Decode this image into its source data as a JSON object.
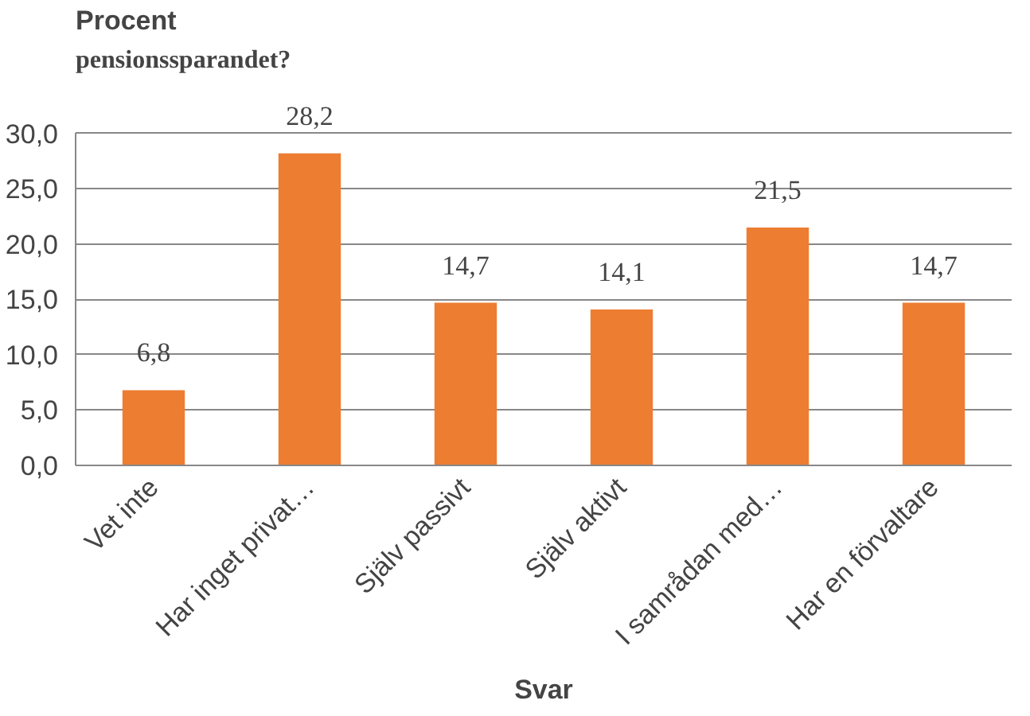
{
  "chart_data": {
    "type": "bar",
    "title": "pensionssparandet?",
    "ylabel": "Procent",
    "xlabel": "Svar",
    "categories": [
      "Vet inte",
      "Har inget privat…",
      "Själv passivt",
      "Själv aktivt",
      "I samrådan med…",
      "Har en förvaltare"
    ],
    "values": [
      6.8,
      28.2,
      14.7,
      14.1,
      21.5,
      14.7
    ],
    "value_labels": [
      "6,8",
      "28,2",
      "14,7",
      "14,1",
      "21,5",
      "14,7"
    ],
    "color": "#ed7d31",
    "ylim": [
      0,
      30
    ],
    "yticks": [
      {
        "value": 0,
        "label": "0,0"
      },
      {
        "value": 5,
        "label": "5,0"
      },
      {
        "value": 10,
        "label": "10,0"
      },
      {
        "value": 15,
        "label": "15,0"
      },
      {
        "value": 20,
        "label": "20,0"
      },
      {
        "value": 25,
        "label": "25,0"
      },
      {
        "value": 30,
        "label": "30,0"
      }
    ],
    "grid": "y"
  }
}
